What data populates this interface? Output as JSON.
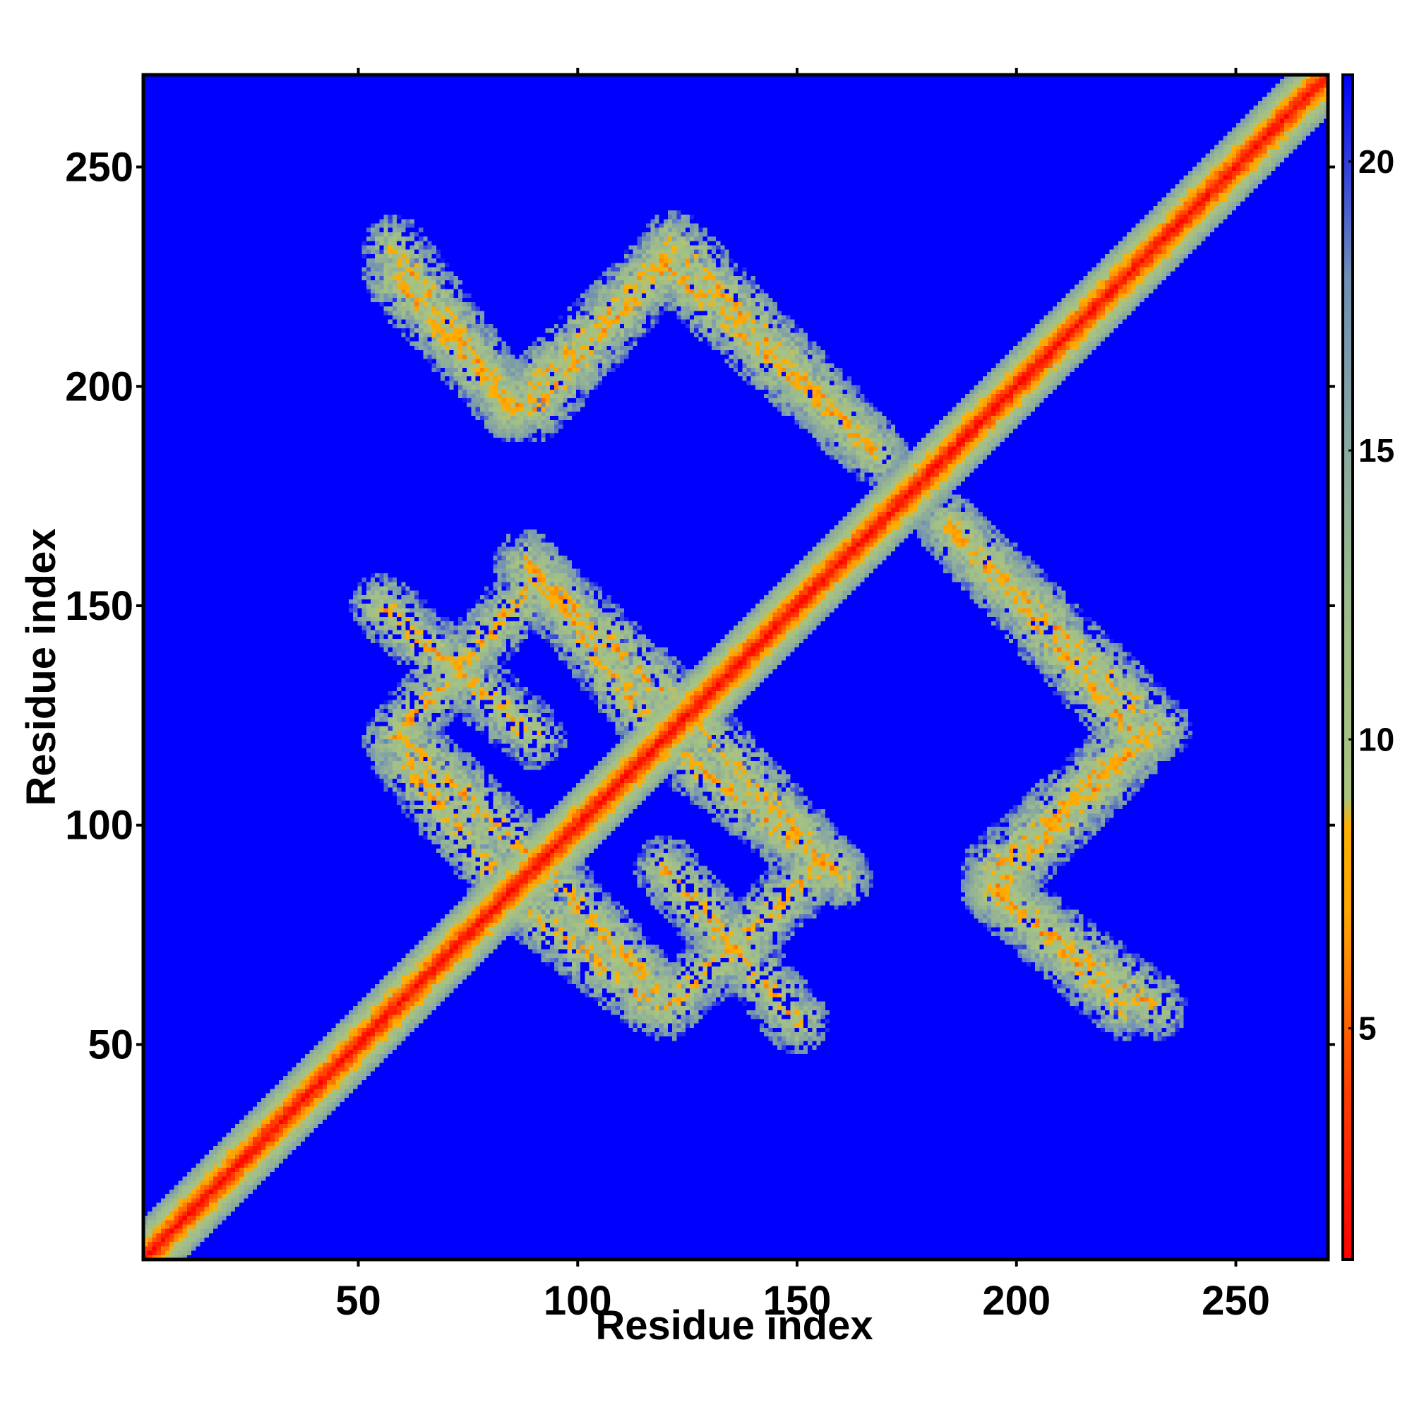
{
  "chart_data": {
    "type": "heatmap",
    "title": "",
    "xlabel": "Residue index",
    "ylabel": "Residue index",
    "x_range": [
      1,
      271
    ],
    "y_range": [
      1,
      271
    ],
    "x_ticks": [
      50,
      100,
      150,
      200,
      250
    ],
    "y_ticks": [
      50,
      100,
      150,
      200,
      250
    ],
    "colorbar": {
      "range": [
        1,
        21.5
      ],
      "ticks": [
        5,
        10,
        15,
        20
      ],
      "stops": [
        {
          "value": 1,
          "color": "#ff0000"
        },
        {
          "value": 4,
          "color": "#ff4000"
        },
        {
          "value": 7,
          "color": "#ffa500"
        },
        {
          "value": 8.5,
          "color": "#ffb000"
        },
        {
          "value": 9,
          "color": "#a9c47f"
        },
        {
          "value": 12,
          "color": "#9fbd8a"
        },
        {
          "value": 15,
          "color": "#8aa9a0"
        },
        {
          "value": 18,
          "color": "#6f8fb4"
        },
        {
          "value": 21.5,
          "color": "#0000ff"
        }
      ]
    },
    "background_color": "#0000ff",
    "description_features": {
      "diagonal": {
        "from": [
          1,
          1
        ],
        "to": [
          271,
          271
        ]
      },
      "bands": [
        {
          "from": [
            85,
            195
          ],
          "to": [
            58,
            225
          ],
          "orientation": "anti"
        },
        {
          "from": [
            120,
            228
          ],
          "to": [
            168,
            185
          ],
          "orientation": "anti"
        },
        {
          "from": [
            90,
            80
          ],
          "to": [
            115,
            60
          ],
          "orientation": "anti"
        },
        {
          "from": [
            62,
            118
          ],
          "to": [
            92,
            90
          ],
          "orientation": "anti"
        },
        {
          "from": [
            90,
            158
          ],
          "to": [
            125,
            125
          ],
          "orientation": "anti"
        },
        {
          "from": [
            125,
            115
          ],
          "to": [
            160,
            88
          ],
          "orientation": "anti"
        },
        {
          "from": [
            185,
            168
          ],
          "to": [
            233,
            122
          ],
          "orientation": "anti"
        },
        {
          "from": [
            195,
            85
          ],
          "to": [
            232,
            58
          ],
          "orientation": "anti"
        },
        {
          "from": [
            55,
            150
          ],
          "to": [
            90,
            120
          ],
          "orientation": "para"
        },
        {
          "from": [
            120,
            58
          ],
          "to": [
            155,
            90
          ],
          "orientation": "para"
        },
        {
          "from": [
            195,
            85
          ],
          "to": [
            230,
            120
          ],
          "orientation": "para"
        },
        {
          "from": [
            90,
            195
          ],
          "to": [
            120,
            228
          ],
          "orientation": "para"
        }
      ]
    }
  }
}
